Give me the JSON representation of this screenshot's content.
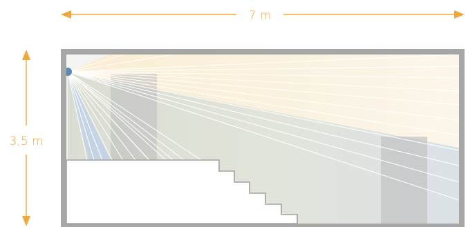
{
  "dimensions": {
    "width_label": "7 m",
    "height_label": "3,5 m"
  },
  "colors": {
    "dimension_accent": "#f2a63a",
    "wall": "#a6a6a6",
    "room_background": "#f4f5f2",
    "light_warm": "#fdeccc",
    "light_cool": "#c9d7e6",
    "rays": "#ffffff",
    "obstacle": "#bdbdbd",
    "sensor": "#5b89b8"
  },
  "icons": {
    "sensor": "sensor-dot-icon",
    "width_arrow": "double-arrow-horizontal-icon",
    "height_arrow": "double-arrow-vertical-icon"
  }
}
